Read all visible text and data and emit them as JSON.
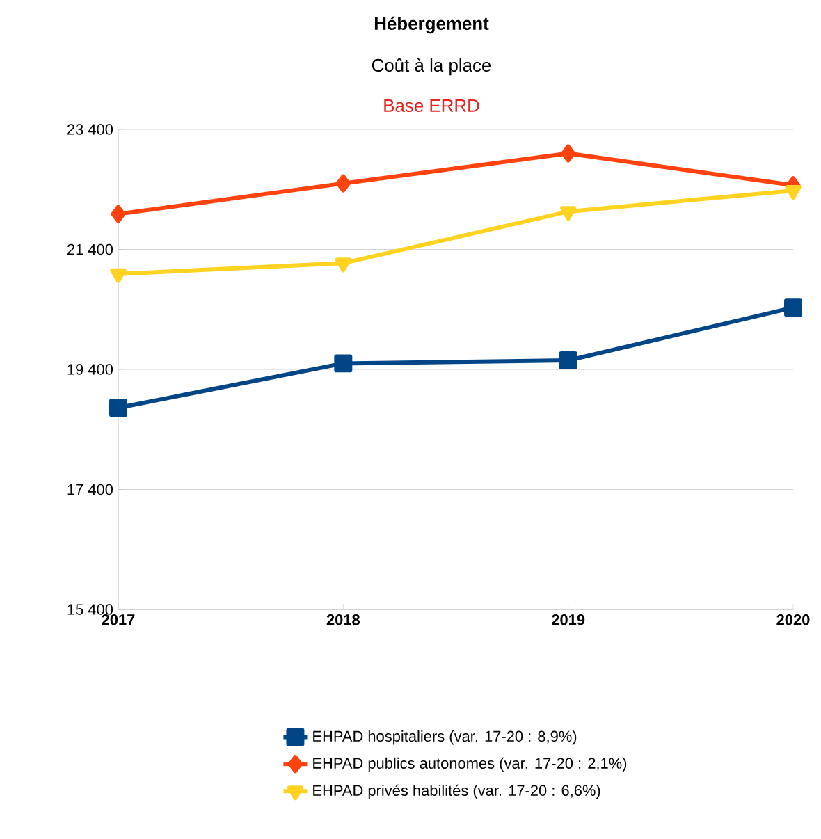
{
  "chart_data": {
    "type": "line",
    "title": "Hébergement",
    "subtitle": "Coût à la place",
    "annotations": [
      "Base ERRD"
    ],
    "categories": [
      "2017",
      "2018",
      "2019",
      "2020"
    ],
    "ylim": [
      15400,
      23400
    ],
    "yticks": [
      {
        "value": 15400,
        "label": "15 400"
      },
      {
        "value": 17400,
        "label": "17 400"
      },
      {
        "value": 19400,
        "label": "19 400"
      },
      {
        "value": 21400,
        "label": "21 400"
      },
      {
        "value": 23400,
        "label": "23 400"
      }
    ],
    "grid": "y",
    "legend": "bottom",
    "line_style": "solid",
    "series": [
      {
        "name": "EHPAD hospitaliers (var. 17-20 : 8,9%)",
        "color": "#004586",
        "marker": "square",
        "values": [
          18760,
          19500,
          19550,
          20430
        ]
      },
      {
        "name": "EHPAD publics autonomes (var. 17-20 : 2,1%)",
        "color": "#ff420e",
        "marker": "diamond",
        "values": [
          21990,
          22500,
          23000,
          22470
        ]
      },
      {
        "name": "EHPAD privés habilités (var. 17-20 : 6,6%)",
        "color": "#ffd320",
        "marker": "triangle",
        "values": [
          20990,
          21170,
          22030,
          22380
        ]
      }
    ]
  }
}
